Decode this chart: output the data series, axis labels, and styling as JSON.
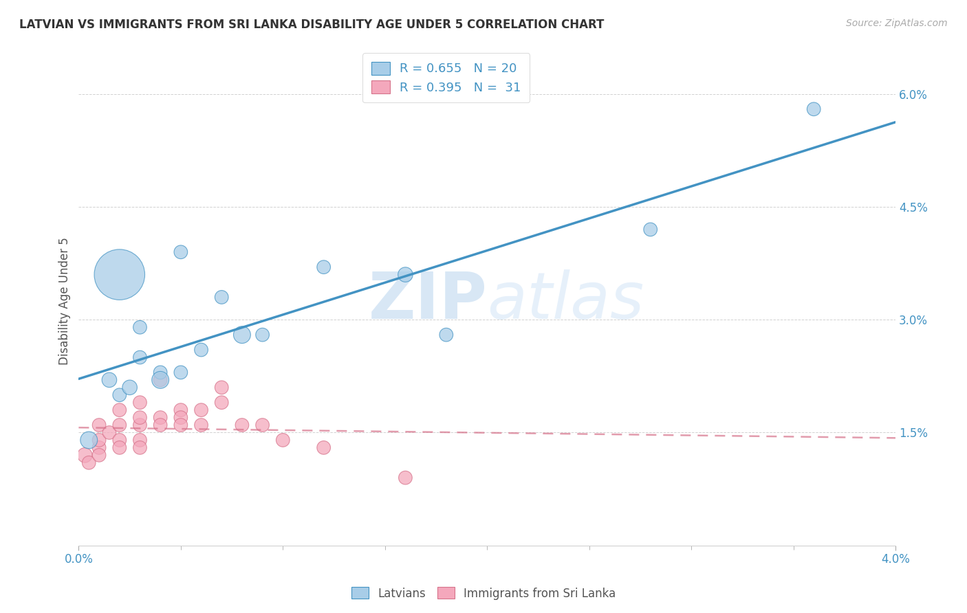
{
  "title": "LATVIAN VS IMMIGRANTS FROM SRI LANKA DISABILITY AGE UNDER 5 CORRELATION CHART",
  "source": "Source: ZipAtlas.com",
  "xlabel": "",
  "ylabel": "Disability Age Under 5",
  "legend_bottom": [
    "Latvians",
    "Immigrants from Sri Lanka"
  ],
  "latvian_R": "0.655",
  "latvian_N": "20",
  "srilanka_R": "0.395",
  "srilanka_N": "31",
  "xlim": [
    0.0,
    0.04
  ],
  "ylim": [
    0.0,
    0.065
  ],
  "yticks": [
    0.015,
    0.03,
    0.045,
    0.06
  ],
  "ytick_labels": [
    "1.5%",
    "3.0%",
    "4.5%",
    "6.0%"
  ],
  "xticks": [
    0.0,
    0.04
  ],
  "xtick_labels": [
    "0.0%",
    "4.0%"
  ],
  "blue_color": "#a8cde8",
  "pink_color": "#f4a8bc",
  "blue_line_color": "#4393c3",
  "pink_line_color": "#d6728a",
  "watermark_zip": "ZIP",
  "watermark_atlas": "atlas",
  "latvians_x": [
    0.0005,
    0.0015,
    0.002,
    0.0025,
    0.002,
    0.003,
    0.004,
    0.003,
    0.004,
    0.005,
    0.005,
    0.006,
    0.007,
    0.008,
    0.009,
    0.012,
    0.016,
    0.018,
    0.028,
    0.036
  ],
  "latvians_y": [
    0.014,
    0.022,
    0.02,
    0.021,
    0.036,
    0.025,
    0.023,
    0.029,
    0.022,
    0.023,
    0.039,
    0.026,
    0.033,
    0.028,
    0.028,
    0.037,
    0.036,
    0.028,
    0.042,
    0.058
  ],
  "latvians_size": [
    40,
    30,
    25,
    30,
    350,
    25,
    25,
    25,
    40,
    25,
    25,
    25,
    25,
    40,
    25,
    25,
    30,
    25,
    25,
    25
  ],
  "srilanka_x": [
    0.0003,
    0.0005,
    0.001,
    0.001,
    0.001,
    0.001,
    0.0015,
    0.002,
    0.002,
    0.002,
    0.002,
    0.003,
    0.003,
    0.003,
    0.003,
    0.003,
    0.004,
    0.004,
    0.004,
    0.005,
    0.005,
    0.005,
    0.006,
    0.006,
    0.007,
    0.007,
    0.008,
    0.009,
    0.01,
    0.012,
    0.016
  ],
  "srilanka_y": [
    0.012,
    0.011,
    0.013,
    0.014,
    0.012,
    0.016,
    0.015,
    0.014,
    0.016,
    0.018,
    0.013,
    0.016,
    0.017,
    0.014,
    0.019,
    0.013,
    0.017,
    0.016,
    0.022,
    0.018,
    0.017,
    0.016,
    0.018,
    0.016,
    0.019,
    0.021,
    0.016,
    0.016,
    0.014,
    0.013,
    0.009
  ],
  "srilanka_size": [
    30,
    25,
    25,
    25,
    25,
    25,
    25,
    25,
    25,
    25,
    25,
    25,
    25,
    25,
    25,
    25,
    25,
    25,
    25,
    25,
    25,
    25,
    25,
    25,
    25,
    25,
    25,
    25,
    25,
    25,
    25
  ]
}
